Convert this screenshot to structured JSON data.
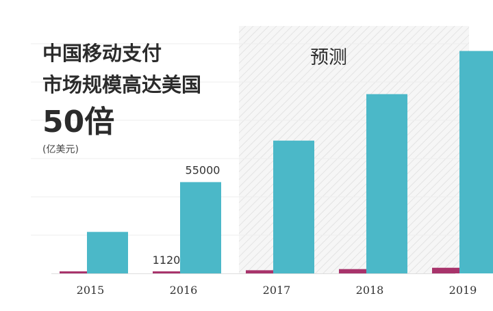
{
  "chart_data": {
    "type": "bar",
    "title_lines": [
      "中国移动支付",
      "市场规模高达美国"
    ],
    "headline_number": "50倍",
    "unit": "(亿美元)",
    "forecast_label": "预测",
    "categories": [
      "2015",
      "2016",
      "2017",
      "2018",
      "2019"
    ],
    "series": [
      {
        "color": "#a8336b",
        "values": [
          220,
          1120,
          1900,
          2600,
          3400
        ]
      },
      {
        "color": "#4bb8c8",
        "values": [
          25000,
          55000,
          80000,
          108000,
          134000
        ]
      }
    ],
    "data_labels": [
      {
        "category": "2016",
        "series": 0,
        "text": "1120"
      },
      {
        "category": "2016",
        "series": 1,
        "text": "55000"
      }
    ],
    "forecast_start_category": "2017",
    "ylim": [
      0,
      140000
    ],
    "grid": true
  }
}
